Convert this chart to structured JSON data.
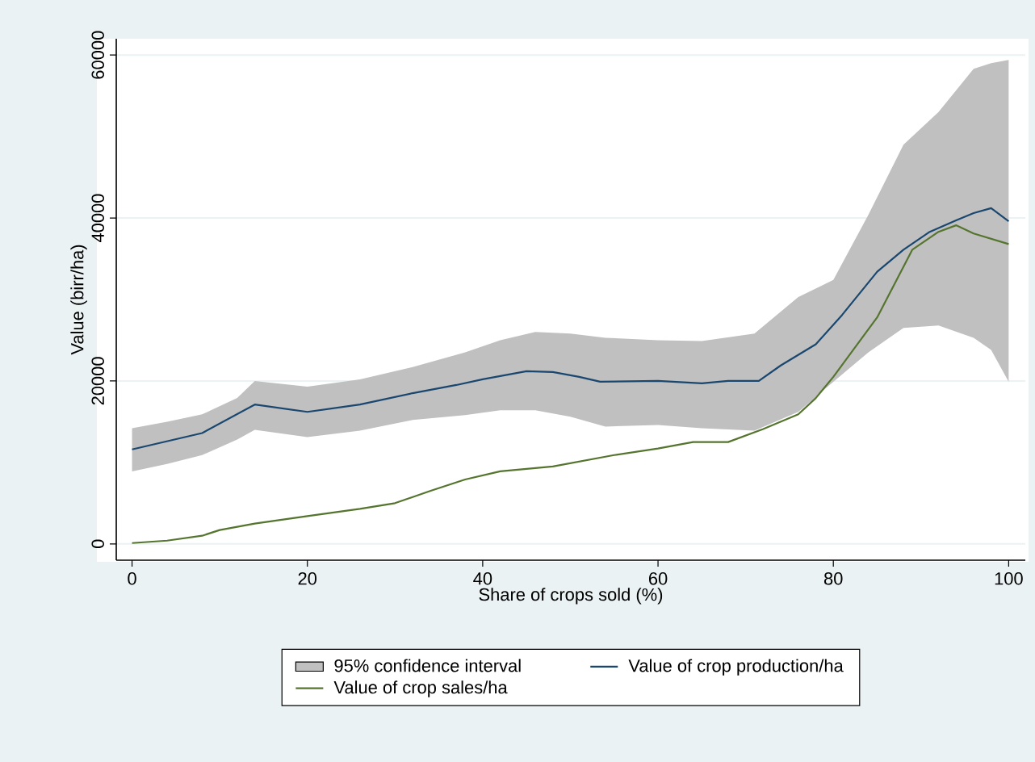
{
  "chart_data": {
    "type": "line",
    "xlabel": "Share of crops sold (%)",
    "ylabel": "Value (birr/ha)",
    "xlim": [
      -1.8,
      101.9
    ],
    "ylim": [
      -2000,
      62000
    ],
    "xticks": [
      0,
      20,
      40,
      60,
      80,
      100
    ],
    "yticks": [
      0,
      20000,
      40000,
      60000
    ],
    "grid": "y",
    "legend": "bottom",
    "series": [
      {
        "name": "95% confidence interval",
        "type": "area",
        "color": "#c0c0c0",
        "x": [
          0,
          4,
          8,
          12,
          14,
          20,
          26,
          32,
          38,
          42,
          46,
          50,
          54,
          60,
          65,
          71,
          76,
          80,
          84,
          88,
          92,
          96,
          98,
          100
        ],
        "lower": [
          8900,
          9800,
          10900,
          12800,
          14000,
          13100,
          13900,
          15200,
          15800,
          16400,
          16400,
          15600,
          14400,
          14600,
          14200,
          13900,
          16200,
          19900,
          23500,
          26500,
          26800,
          25300,
          23800,
          19900
        ],
        "upper": [
          14200,
          15000,
          15900,
          17900,
          20000,
          19300,
          20200,
          21700,
          23500,
          25000,
          26000,
          25800,
          25300,
          25000,
          24900,
          25800,
          30300,
          32400,
          40400,
          49000,
          53000,
          58300,
          59000,
          59400
        ],
        "values": [
          null,
          null,
          null,
          null,
          null,
          null,
          null,
          null,
          null,
          null,
          null,
          null,
          null,
          null,
          null,
          null,
          null,
          null,
          null,
          null,
          null,
          null,
          null,
          null
        ]
      },
      {
        "name": "Value of crop production/ha",
        "color": "#1a476f",
        "x": [
          0,
          8,
          14,
          20,
          26,
          32,
          37,
          40,
          45,
          48,
          51,
          53.4,
          60,
          65,
          68,
          71.5,
          74,
          78,
          81,
          85,
          88,
          91,
          94,
          96,
          98,
          100
        ],
        "values": [
          11600,
          13600,
          17100,
          16200,
          17100,
          18500,
          19500,
          20200,
          21200,
          21100,
          20500,
          19900,
          20000,
          19700,
          20000,
          20000,
          21900,
          24500,
          28100,
          33400,
          36100,
          38300,
          39700,
          40600,
          41200,
          39600
        ]
      },
      {
        "name": "Value of crop sales/ha",
        "color": "#55752f",
        "x": [
          0,
          4,
          8,
          10,
          14,
          20,
          26,
          30,
          34,
          38,
          42,
          46,
          48,
          55,
          60,
          64,
          68,
          72,
          76,
          78,
          80,
          85,
          89,
          92,
          94,
          96,
          100
        ],
        "values": [
          100,
          400,
          1000,
          1700,
          2500,
          3400,
          4300,
          5000,
          6500,
          7900,
          8900,
          9300,
          9500,
          10900,
          11700,
          12500,
          12500,
          14100,
          15900,
          17900,
          20500,
          27800,
          36100,
          38300,
          39100,
          38100,
          36800
        ]
      }
    ]
  }
}
